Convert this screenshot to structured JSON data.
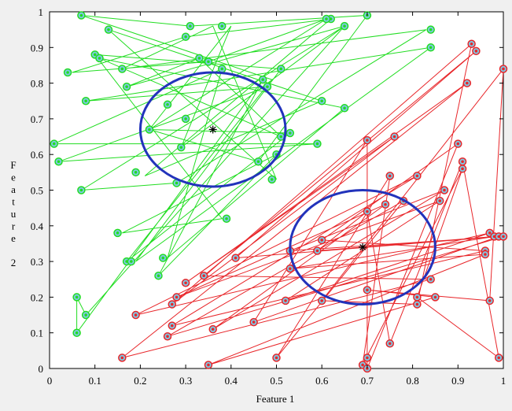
{
  "chart_data": {
    "type": "scatter",
    "xlabel": "Feature 1",
    "ylabel": "Feature 2",
    "xlim": [
      0,
      1
    ],
    "ylim": [
      0,
      1
    ],
    "xticks": [
      "0",
      "0.1",
      "0.2",
      "0.3",
      "0.4",
      "0.5",
      "0.6",
      "0.7",
      "0.8",
      "0.9",
      "1"
    ],
    "yticks": [
      "0",
      "0.1",
      "0.2",
      "0.3",
      "0.4",
      "0.5",
      "0.6",
      "0.7",
      "0.8",
      "0.9",
      "1"
    ],
    "grid": false,
    "series": [
      {
        "color": "#22dd22",
        "marker_color": "#7ec8e3",
        "points": [
          [
            0.07,
            0.99
          ],
          [
            0.31,
            0.96
          ],
          [
            0.7,
            0.99
          ],
          [
            0.62,
            0.98
          ],
          [
            0.61,
            0.98
          ],
          [
            0.65,
            0.96
          ],
          [
            0.38,
            0.96
          ],
          [
            0.3,
            0.93
          ],
          [
            0.13,
            0.95
          ],
          [
            0.84,
            0.95
          ],
          [
            0.1,
            0.88
          ],
          [
            0.11,
            0.87
          ],
          [
            0.33,
            0.87
          ],
          [
            0.35,
            0.86
          ],
          [
            0.84,
            0.9
          ],
          [
            0.04,
            0.83
          ],
          [
            0.16,
            0.84
          ],
          [
            0.38,
            0.84
          ],
          [
            0.47,
            0.81
          ],
          [
            0.51,
            0.84
          ],
          [
            0.48,
            0.79
          ],
          [
            0.17,
            0.79
          ],
          [
            0.08,
            0.75
          ],
          [
            0.6,
            0.75
          ],
          [
            0.26,
            0.74
          ],
          [
            0.65,
            0.73
          ],
          [
            0.22,
            0.67
          ],
          [
            0.3,
            0.7
          ],
          [
            0.51,
            0.65
          ],
          [
            0.53,
            0.66
          ],
          [
            0.01,
            0.63
          ],
          [
            0.29,
            0.62
          ],
          [
            0.5,
            0.6
          ],
          [
            0.59,
            0.63
          ],
          [
            0.02,
            0.58
          ],
          [
            0.46,
            0.58
          ],
          [
            0.19,
            0.55
          ],
          [
            0.28,
            0.52
          ],
          [
            0.49,
            0.53
          ],
          [
            0.07,
            0.5
          ],
          [
            0.39,
            0.42
          ],
          [
            0.15,
            0.38
          ],
          [
            0.17,
            0.3
          ],
          [
            0.18,
            0.3
          ],
          [
            0.25,
            0.31
          ],
          [
            0.24,
            0.26
          ],
          [
            0.06,
            0.2
          ],
          [
            0.08,
            0.15
          ],
          [
            0.06,
            0.1
          ]
        ],
        "path": [
          [
            0.07,
            0.99
          ],
          [
            0.31,
            0.96
          ],
          [
            0.7,
            0.99
          ],
          [
            0.46,
            0.58
          ],
          [
            0.22,
            0.67
          ],
          [
            0.61,
            0.98
          ],
          [
            0.35,
            0.86
          ],
          [
            0.05,
            0.83
          ],
          [
            0.3,
            0.93
          ],
          [
            0.62,
            0.98
          ],
          [
            0.21,
            0.54
          ],
          [
            0.6,
            0.75
          ],
          [
            0.13,
            0.95
          ],
          [
            0.5,
            0.53
          ],
          [
            0.36,
            0.96
          ],
          [
            0.16,
            0.84
          ],
          [
            0.83,
            0.95
          ],
          [
            0.28,
            0.52
          ],
          [
            0.07,
            0.5
          ],
          [
            0.65,
            0.96
          ],
          [
            0.17,
            0.79
          ],
          [
            0.33,
            0.87
          ],
          [
            0.51,
            0.65
          ],
          [
            0.11,
            0.87
          ],
          [
            0.65,
            0.73
          ],
          [
            0.26,
            0.31
          ],
          [
            0.38,
            0.84
          ],
          [
            0.01,
            0.63
          ],
          [
            0.59,
            0.63
          ],
          [
            0.02,
            0.58
          ],
          [
            0.48,
            0.79
          ],
          [
            0.08,
            0.75
          ],
          [
            0.84,
            0.9
          ],
          [
            0.19,
            0.3
          ],
          [
            0.51,
            0.84
          ],
          [
            0.1,
            0.88
          ],
          [
            0.38,
            0.42
          ],
          [
            0.16,
            0.38
          ],
          [
            0.5,
            0.6
          ],
          [
            0.24,
            0.26
          ],
          [
            0.47,
            0.81
          ],
          [
            0.06,
            0.1
          ],
          [
            0.06,
            0.2
          ],
          [
            0.08,
            0.15
          ],
          [
            0.65,
            0.96
          ],
          [
            0.29,
            0.62
          ],
          [
            0.4,
            0.96
          ],
          [
            0.22,
            0.67
          ],
          [
            0.53,
            0.66
          ],
          [
            0.17,
            0.3
          ],
          [
            0.49,
            0.81
          ],
          [
            0.07,
            0.99
          ]
        ],
        "centroid": [
          0.36,
          0.67
        ],
        "circle_radius": 0.16
      },
      {
        "color": "#e8262a",
        "marker_color": "#7ec8e3",
        "points": [
          [
            0.93,
            0.91
          ],
          [
            0.94,
            0.89
          ],
          [
            1.0,
            0.84
          ],
          [
            0.92,
            0.8
          ],
          [
            0.7,
            0.64
          ],
          [
            0.76,
            0.65
          ],
          [
            0.9,
            0.63
          ],
          [
            0.91,
            0.58
          ],
          [
            0.91,
            0.56
          ],
          [
            0.75,
            0.54
          ],
          [
            0.81,
            0.54
          ],
          [
            0.87,
            0.5
          ],
          [
            0.78,
            0.47
          ],
          [
            0.86,
            0.47
          ],
          [
            0.7,
            0.44
          ],
          [
            0.74,
            0.46
          ],
          [
            0.97,
            0.38
          ],
          [
            0.98,
            0.37
          ],
          [
            0.99,
            0.37
          ],
          [
            1.0,
            0.37
          ],
          [
            0.96,
            0.33
          ],
          [
            0.96,
            0.32
          ],
          [
            0.6,
            0.36
          ],
          [
            0.53,
            0.33
          ],
          [
            0.59,
            0.33
          ],
          [
            0.41,
            0.31
          ],
          [
            0.53,
            0.28
          ],
          [
            0.34,
            0.26
          ],
          [
            0.3,
            0.24
          ],
          [
            0.7,
            0.22
          ],
          [
            0.52,
            0.19
          ],
          [
            0.6,
            0.19
          ],
          [
            0.28,
            0.2
          ],
          [
            0.27,
            0.18
          ],
          [
            0.84,
            0.25
          ],
          [
            0.81,
            0.2
          ],
          [
            0.85,
            0.2
          ],
          [
            0.81,
            0.18
          ],
          [
            0.97,
            0.19
          ],
          [
            0.19,
            0.15
          ],
          [
            0.45,
            0.13
          ],
          [
            0.27,
            0.12
          ],
          [
            0.36,
            0.11
          ],
          [
            0.26,
            0.09
          ],
          [
            0.75,
            0.07
          ],
          [
            0.16,
            0.03
          ],
          [
            0.5,
            0.03
          ],
          [
            0.7,
            0.03
          ],
          [
            0.99,
            0.03
          ],
          [
            0.35,
            0.01
          ],
          [
            0.69,
            0.01
          ],
          [
            0.7,
            0.0
          ]
        ],
        "path": [
          [
            0.93,
            0.91
          ],
          [
            0.27,
            0.18
          ],
          [
            0.76,
            0.65
          ],
          [
            0.3,
            0.24
          ],
          [
            0.92,
            0.8
          ],
          [
            0.16,
            0.03
          ],
          [
            0.84,
            0.25
          ],
          [
            0.34,
            0.26
          ],
          [
            0.94,
            0.89
          ],
          [
            0.41,
            0.31
          ],
          [
            0.99,
            0.37
          ],
          [
            0.45,
            0.13
          ],
          [
            0.7,
            0.64
          ],
          [
            0.7,
            0.0
          ],
          [
            0.9,
            0.63
          ],
          [
            0.6,
            0.36
          ],
          [
            0.96,
            0.33
          ],
          [
            0.27,
            0.12
          ],
          [
            0.81,
            0.54
          ],
          [
            0.19,
            0.15
          ],
          [
            0.97,
            0.38
          ],
          [
            0.52,
            0.19
          ],
          [
            0.86,
            0.47
          ],
          [
            0.28,
            0.2
          ],
          [
            0.74,
            0.46
          ],
          [
            0.36,
            0.11
          ],
          [
            0.87,
            0.5
          ],
          [
            0.53,
            0.33
          ],
          [
            1.0,
            0.37
          ],
          [
            0.26,
            0.09
          ],
          [
            0.78,
            0.47
          ],
          [
            0.5,
            0.03
          ],
          [
            0.75,
            0.54
          ],
          [
            0.69,
            0.01
          ],
          [
            0.91,
            0.56
          ],
          [
            0.81,
            0.2
          ],
          [
            0.99,
            0.03
          ],
          [
            0.91,
            0.58
          ],
          [
            0.75,
            0.07
          ],
          [
            0.7,
            0.44
          ],
          [
            0.59,
            0.33
          ],
          [
            0.98,
            0.37
          ],
          [
            0.53,
            0.28
          ],
          [
            0.96,
            0.32
          ],
          [
            0.35,
            0.01
          ],
          [
            0.85,
            0.2
          ],
          [
            0.7,
            0.22
          ],
          [
            0.97,
            0.19
          ],
          [
            1.0,
            0.84
          ],
          [
            0.6,
            0.19
          ],
          [
            0.81,
            0.18
          ],
          [
            0.93,
            0.91
          ]
        ],
        "centroid": [
          0.69,
          0.34
        ],
        "circle_radius": 0.16
      }
    ],
    "circle_color": "#2233bb",
    "centroid_color": "#000000"
  }
}
